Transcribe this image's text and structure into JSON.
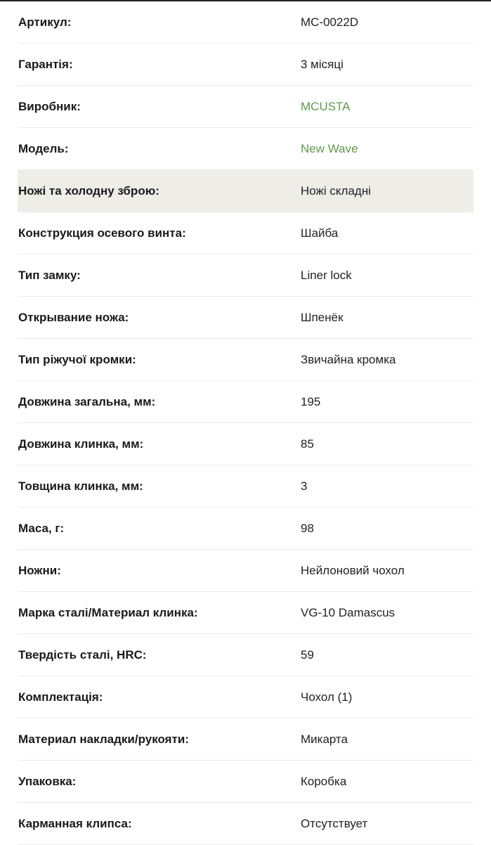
{
  "link_color": "#5d9a4c",
  "highlight_color": "#efede8",
  "specs": [
    {
      "label": "Артикул:",
      "value": "MC-0022D"
    },
    {
      "label": "Гарантія:",
      "value": "3 місяці"
    },
    {
      "label": "Виробник:",
      "value": "MCUSTA",
      "link": true
    },
    {
      "label": "Модель:",
      "value": "New Wave",
      "link": true
    },
    {
      "label": "Ножі та холодну зброю:",
      "value": "Ножі складні",
      "highlighted": true
    },
    {
      "label": "Конструкция осевого винта:",
      "value": "Шайба"
    },
    {
      "label": "Тип замку:",
      "value": "Liner lock"
    },
    {
      "label": "Открывание ножа:",
      "value": "Шпенёк"
    },
    {
      "label": "Тип ріжучої кромки:",
      "value": "Звичайна кромка"
    },
    {
      "label": "Довжина загальна, мм:",
      "value": "195"
    },
    {
      "label": "Довжина клинка, мм:",
      "value": "85"
    },
    {
      "label": "Товщина клинка, мм:",
      "value": "3"
    },
    {
      "label": "Маса, г:",
      "value": "98"
    },
    {
      "label": "Ножни:",
      "value": "Нейлоновий чохол"
    },
    {
      "label": "Марка сталі/Материал клинка:",
      "value": "VG-10 Damascus"
    },
    {
      "label": "Твердість сталі, HRC:",
      "value": "59"
    },
    {
      "label": "Комплектація:",
      "value": "Чохол (1)"
    },
    {
      "label": "Материал накладки/рукояти:",
      "value": "Микарта"
    },
    {
      "label": "Упаковка:",
      "value": "Коробка"
    },
    {
      "label": "Карманная клипса:",
      "value": "Отсутствует"
    }
  ]
}
